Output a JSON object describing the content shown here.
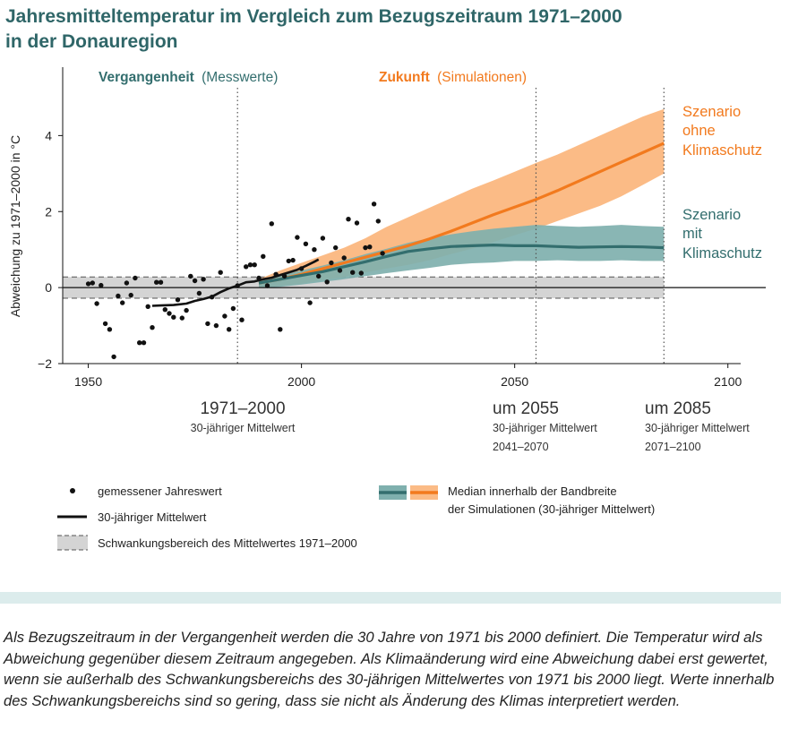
{
  "title": {
    "line1": "Jahresmitteltemperatur im Vergleich zum Bezugszeitraum 1971–2000",
    "line2": "in der Donauregion"
  },
  "colors": {
    "title": "#2f6668",
    "teal_line": "#336e6e",
    "teal_band": "#7fb0ae",
    "orange_line": "#f27a1e",
    "orange_band": "#fbbb86",
    "ref_band": "#d4d4d4",
    "caption_bar": "#dcecec"
  },
  "header": {
    "past_bold": "Vergangenheit",
    "past_light": "(Messwerte)",
    "future_bold": "Zukunft",
    "future_light": "(Simulationen)"
  },
  "scenario_labels": {
    "no_protection": [
      "Szenario",
      "ohne",
      "Klimaschutz"
    ],
    "protection": [
      "Szenario",
      "mit",
      "Klimaschutz"
    ]
  },
  "periods": [
    {
      "title": "1971–2000",
      "sub1": "30-jähriger Mittelwert",
      "sub2": ""
    },
    {
      "title": "um 2055",
      "sub1": "30-jähriger Mittelwert",
      "sub2": "2041–2070"
    },
    {
      "title": "um 2085",
      "sub1": "30-jähriger Mittelwert",
      "sub2": "2071–2100"
    }
  ],
  "legend": {
    "points": "gemessener Jahreswert",
    "mean": "30-jähriger Mittelwert",
    "band": "Schwankungsbereich des Mittelwertes 1971–2000",
    "median_line1": "Median innerhalb der Bandbreite",
    "median_line2": "der Simulationen (30-jähriger Mittelwert)"
  },
  "caption": "Als Bezugszeitraum in der Vergangenheit werden die 30 Jahre von 1971 bis 2000 definiert. Die Temperatur wird als Abweichung gegenüber diesem Zeitraum angegeben. Als Klimaänderung wird eine Abweichung dabei erst gewertet, wenn sie außerhalb des Schwankungsbereichs des 30-jährigen Mittelwertes von 1971 bis 2000 liegt. Werte innerhalb des Schwankungsbereichs sind so gering, dass sie nicht als Änderung des Klimas interpretiert werden.",
  "chart_data": {
    "type": "line",
    "title": "Jahresmitteltemperatur im Vergleich zum Bezugszeitraum 1971–2000 in der Donauregion",
    "xlabel": "",
    "ylabel": "Abweichung zu 1971–2000 in °C",
    "xlim": [
      1944,
      2103
    ],
    "ylim": [
      -2,
      5.8
    ],
    "xticks": [
      1950,
      2000,
      2050,
      2100
    ],
    "yticks": [
      -2,
      0,
      2,
      4
    ],
    "reference_band": [
      -0.28,
      0.28
    ],
    "reference_lines_x": [
      1985,
      2055,
      2085
    ],
    "annual_values": {
      "name": "gemessener Jahreswert",
      "x": [
        1950,
        1951,
        1952,
        1953,
        1954,
        1955,
        1956,
        1957,
        1958,
        1959,
        1960,
        1961,
        1962,
        1963,
        1964,
        1965,
        1966,
        1967,
        1968,
        1969,
        1970,
        1971,
        1972,
        1973,
        1974,
        1975,
        1976,
        1977,
        1978,
        1979,
        1980,
        1981,
        1982,
        1983,
        1984,
        1985,
        1986,
        1987,
        1988,
        1989,
        1990,
        1991,
        1992,
        1993,
        1994,
        1995,
        1996,
        1997,
        1998,
        1999,
        2000,
        2001,
        2002,
        2003,
        2004,
        2005,
        2006,
        2007,
        2008,
        2009,
        2010,
        2011,
        2012,
        2013,
        2014,
        2015,
        2016,
        2017,
        2018,
        2019
      ],
      "y": [
        0.1,
        0.12,
        -0.42,
        0.06,
        -0.95,
        -1.1,
        -1.82,
        -0.22,
        -0.4,
        0.12,
        -0.2,
        0.25,
        -1.45,
        -1.45,
        -0.5,
        -1.05,
        0.14,
        0.14,
        -0.58,
        -0.68,
        -0.78,
        -0.32,
        -0.8,
        -0.6,
        0.3,
        0.18,
        -0.15,
        0.22,
        -0.95,
        -0.25,
        -1.0,
        0.4,
        -0.75,
        -1.1,
        -0.55,
        0.05,
        -0.85,
        0.55,
        0.6,
        0.6,
        0.25,
        0.82,
        0.05,
        1.68,
        0.35,
        -1.1,
        0.3,
        0.7,
        0.72,
        1.32,
        0.5,
        1.15,
        -0.4,
        1.0,
        0.3,
        1.3,
        0.15,
        0.65,
        1.05,
        0.45,
        0.78,
        1.8,
        0.4,
        1.7,
        0.38,
        1.05,
        1.07,
        2.2,
        1.75,
        0.9
      ]
    },
    "series": [
      {
        "name": "30-jähriger Mittelwert",
        "x": [
          1965,
          1967,
          1970,
          1973,
          1975,
          1977,
          1979,
          1981,
          1983,
          1985,
          1987,
          1989,
          1991,
          1993,
          1995,
          1997,
          1999,
          2001,
          2003,
          2004
        ],
        "y": [
          -0.48,
          -0.47,
          -0.46,
          -0.42,
          -0.35,
          -0.3,
          -0.24,
          -0.12,
          -0.02,
          0.05,
          0.14,
          0.16,
          0.22,
          0.26,
          0.33,
          0.4,
          0.47,
          0.57,
          0.68,
          0.74
        ]
      },
      {
        "name": "Szenario ohne Klimaschutz",
        "x": [
          1990,
          1995,
          2000,
          2005,
          2010,
          2015,
          2020,
          2025,
          2030,
          2035,
          2040,
          2045,
          2050,
          2055,
          2060,
          2065,
          2070,
          2075,
          2080,
          2085
        ],
        "median": [
          0.12,
          0.22,
          0.35,
          0.5,
          0.65,
          0.8,
          0.95,
          1.1,
          1.28,
          1.48,
          1.7,
          1.92,
          2.12,
          2.32,
          2.55,
          2.8,
          3.05,
          3.3,
          3.55,
          3.8
        ],
        "low": [
          0.0,
          0.05,
          0.1,
          0.2,
          0.28,
          0.4,
          0.5,
          0.6,
          0.72,
          0.88,
          1.02,
          1.2,
          1.38,
          1.55,
          1.75,
          1.95,
          2.15,
          2.4,
          2.7,
          3.0
        ],
        "high": [
          0.22,
          0.45,
          0.65,
          0.85,
          1.05,
          1.3,
          1.6,
          1.85,
          2.1,
          2.35,
          2.6,
          2.82,
          3.05,
          3.28,
          3.5,
          3.75,
          4.0,
          4.25,
          4.5,
          4.7
        ]
      },
      {
        "name": "Szenario mit Klimaschutz",
        "x": [
          1990,
          1995,
          2000,
          2005,
          2010,
          2015,
          2020,
          2025,
          2030,
          2035,
          2040,
          2045,
          2050,
          2055,
          2060,
          2065,
          2070,
          2075,
          2080,
          2085
        ],
        "median": [
          0.12,
          0.22,
          0.32,
          0.42,
          0.55,
          0.68,
          0.82,
          0.95,
          1.02,
          1.08,
          1.1,
          1.12,
          1.1,
          1.1,
          1.08,
          1.06,
          1.07,
          1.08,
          1.07,
          1.05
        ],
        "low": [
          0.0,
          0.02,
          0.08,
          0.15,
          0.22,
          0.3,
          0.38,
          0.45,
          0.52,
          0.6,
          0.64,
          0.66,
          0.7,
          0.7,
          0.72,
          0.7,
          0.7,
          0.72,
          0.7,
          0.7
        ],
        "high": [
          0.22,
          0.32,
          0.45,
          0.58,
          0.72,
          0.88,
          1.02,
          1.18,
          1.3,
          1.4,
          1.48,
          1.55,
          1.6,
          1.65,
          1.62,
          1.6,
          1.62,
          1.65,
          1.62,
          1.6
        ]
      }
    ]
  }
}
